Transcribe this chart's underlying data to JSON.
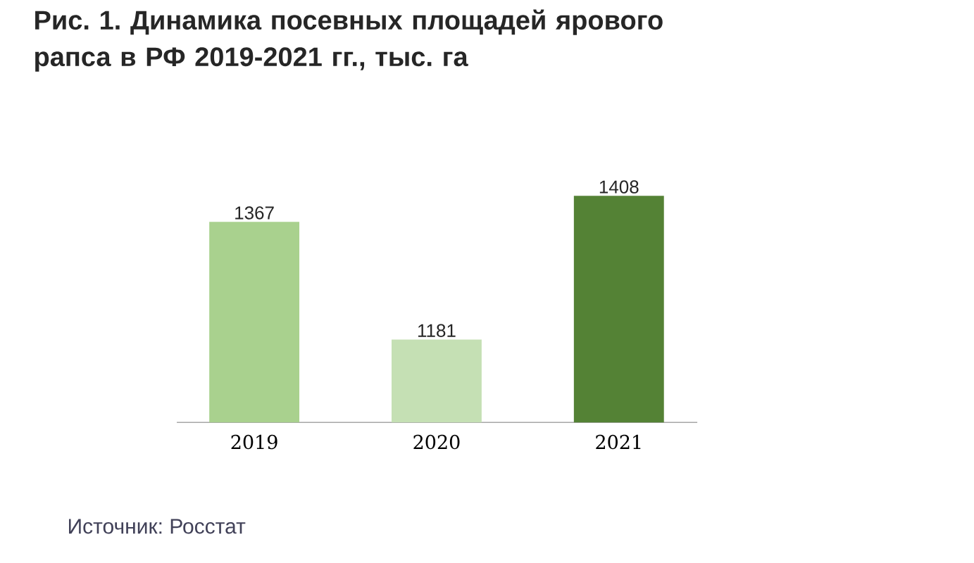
{
  "chart_data": {
    "type": "bar",
    "title": "Рис. 1. Динамика посевных площадей ярового рапса в РФ 2019-2021 гг., тыс. га",
    "categories": [
      "2019",
      "2020",
      "2021"
    ],
    "values": [
      1367,
      1181,
      1408
    ],
    "colors": [
      "#a9d18e",
      "#c5e0b4",
      "#548235"
    ],
    "ylim": [
      1050,
      1408
    ],
    "data_labels": true,
    "tick_labels": "x",
    "annotations": [
      "Источник: Росстат"
    ]
  }
}
